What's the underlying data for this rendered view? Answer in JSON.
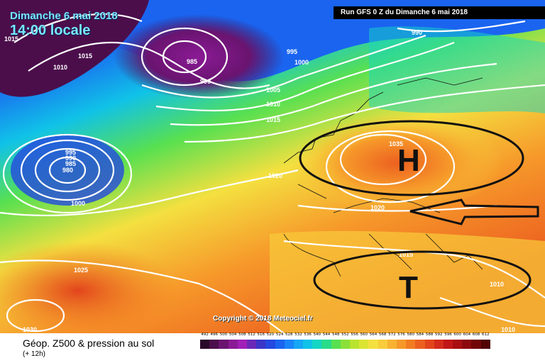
{
  "header": {
    "date": "Dimanche 6 mai 2018",
    "time": "14:00 locale",
    "run": "Run GFS 0 Z du Dimanche 6 mai 2018"
  },
  "copyright": "Copyright © 2018 Meteociel.fr",
  "legend": {
    "title": "Géop. Z500 & pression au sol",
    "subtitle": "(+ 12h)",
    "ticks": [
      "492",
      "496",
      "500",
      "504",
      "508",
      "512",
      "516",
      "520",
      "524",
      "528",
      "532",
      "536",
      "540",
      "544",
      "548",
      "552",
      "556",
      "560",
      "564",
      "568",
      "572",
      "576",
      "580",
      "584",
      "588",
      "592",
      "596",
      "600",
      "604",
      "608",
      "612"
    ],
    "colors": [
      "#2a0a2a",
      "#4b0e4b",
      "#6a1470",
      "#8a1a95",
      "#a020b8",
      "#6a2ab8",
      "#3b36c8",
      "#2448e0",
      "#1a64f0",
      "#1a84f8",
      "#16a6f4",
      "#10c2e8",
      "#14d6c4",
      "#28dc8a",
      "#58e050",
      "#8ae038",
      "#b8e430",
      "#dce434",
      "#f4e040",
      "#f8cc3a",
      "#f8b232",
      "#f6982a",
      "#f27c22",
      "#ec6020",
      "#e2441c",
      "#d42a1a",
      "#c01616",
      "#a80e12",
      "#8c0a0e",
      "#700608",
      "#500404"
    ]
  },
  "map": {
    "isobar_labels": [
      "1015",
      "1010",
      "985",
      "990",
      "995",
      "1000",
      "1005",
      "1010",
      "1015",
      "990",
      "995",
      "990",
      "985",
      "980",
      "1000",
      "1020",
      "1035",
      "1020",
      "1015",
      "1025",
      "1010",
      "1030",
      "1010",
      "1015"
    ],
    "pressure_centers": [
      "H",
      "T"
    ]
  }
}
